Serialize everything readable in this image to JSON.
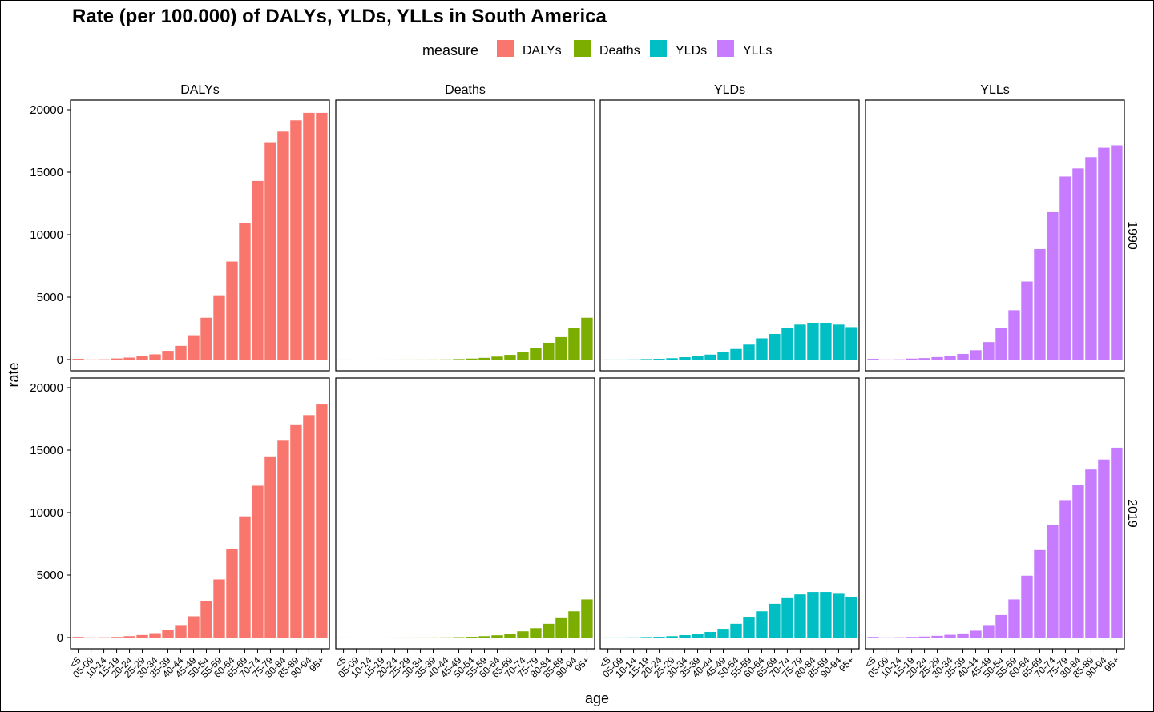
{
  "chart_data": {
    "type": "bar",
    "title": "Rate (per 100.000) of DALYs, YLDs, YLLs in South America",
    "xlabel": "age",
    "ylabel": "rate",
    "ylim": [
      0,
      20000
    ],
    "yticks": [
      0,
      5000,
      10000,
      15000,
      20000
    ],
    "legend": {
      "title": "measure",
      "placement": "top",
      "entries": [
        {
          "name": "DALYs",
          "color": "#F8766D"
        },
        {
          "name": "Deaths",
          "color": "#7CAE00"
        },
        {
          "name": "YLDs",
          "color": "#00BFC4"
        },
        {
          "name": "YLLs",
          "color": "#C77CFF"
        }
      ]
    },
    "facet_columns": [
      "DALYs",
      "Deaths",
      "YLDs",
      "YLLs"
    ],
    "facet_rows": [
      "1990",
      "2019"
    ],
    "categories": [
      "<5",
      "05-09",
      "10-14",
      "15-19",
      "20-24",
      "25-29",
      "30-34",
      "35-39",
      "40-44",
      "45-49",
      "50-54",
      "55-59",
      "60-64",
      "65-69",
      "70-74",
      "75-79",
      "80-84",
      "85-89",
      "90-94",
      "95+"
    ],
    "panels": [
      {
        "measure": "DALYs",
        "year": "1990",
        "color": "#F8766D",
        "values": [
          60,
          10,
          20,
          90,
          160,
          260,
          420,
          700,
          1100,
          1950,
          3350,
          5150,
          7850,
          10950,
          14300,
          17400,
          18250,
          19150,
          19750,
          19750
        ]
      },
      {
        "measure": "Deaths",
        "year": "1990",
        "color": "#7CAE00",
        "values": [
          2,
          0,
          0,
          1,
          2,
          3,
          5,
          8,
          13,
          40,
          80,
          140,
          240,
          380,
          600,
          900,
          1350,
          1800,
          2500,
          3350
        ]
      },
      {
        "measure": "YLDs",
        "year": "1990",
        "color": "#00BFC4",
        "values": [
          5,
          6,
          10,
          40,
          60,
          110,
          190,
          300,
          400,
          600,
          850,
          1200,
          1700,
          2050,
          2550,
          2800,
          2950,
          2950,
          2800,
          2600
        ]
      },
      {
        "measure": "YLLs",
        "year": "1990",
        "color": "#C77CFF",
        "values": [
          60,
          10,
          20,
          80,
          120,
          200,
          300,
          450,
          750,
          1400,
          2550,
          3950,
          6250,
          8850,
          11800,
          14650,
          15300,
          16200,
          16950,
          17150
        ]
      },
      {
        "measure": "DALYs",
        "year": "2019",
        "color": "#F8766D",
        "values": [
          50,
          10,
          20,
          50,
          110,
          200,
          350,
          600,
          1000,
          1700,
          2900,
          4650,
          7050,
          9700,
          12150,
          14500,
          15750,
          17000,
          17800,
          18650
        ]
      },
      {
        "measure": "Deaths",
        "year": "2019",
        "color": "#7CAE00",
        "values": [
          2,
          0,
          0,
          1,
          2,
          3,
          5,
          8,
          13,
          30,
          60,
          110,
          180,
          300,
          500,
          750,
          1100,
          1550,
          2100,
          3050
        ]
      },
      {
        "measure": "YLDs",
        "year": "2019",
        "color": "#00BFC4",
        "values": [
          5,
          6,
          10,
          40,
          60,
          110,
          190,
          300,
          450,
          700,
          1100,
          1600,
          2100,
          2700,
          3150,
          3450,
          3650,
          3650,
          3500,
          3250
        ]
      },
      {
        "measure": "YLLs",
        "year": "2019",
        "color": "#C77CFF",
        "values": [
          50,
          10,
          20,
          50,
          80,
          140,
          220,
          330,
          550,
          1000,
          1800,
          3050,
          4950,
          7000,
          9000,
          11000,
          12200,
          13450,
          14250,
          15200
        ]
      }
    ]
  }
}
